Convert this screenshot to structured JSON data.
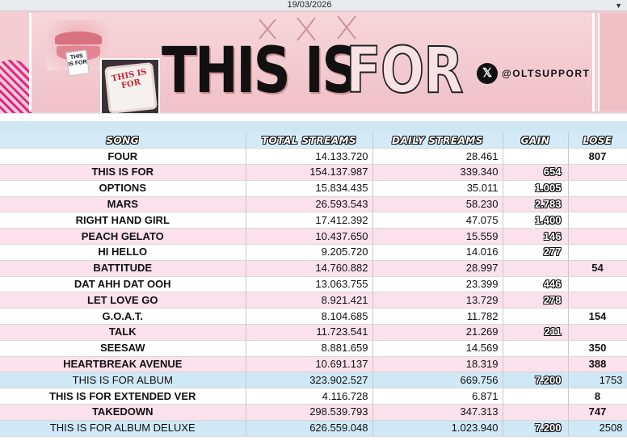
{
  "date_bar": {
    "date": "19/03/2026",
    "dropdown_icon": "chevron-down-icon"
  },
  "banner": {
    "title_solid": "THIS IS",
    "title_outline": "FOR",
    "card_text": "THIS IS FOR",
    "cake_text": "THIS IS FOR",
    "social_icon": "x-icon",
    "social_handle": "@OLTSUPPORT"
  },
  "table": {
    "headers": {
      "song": "SONG",
      "total": "TOTAL STREAMS",
      "daily": "DAILY STREAMS",
      "gain": "GAIN",
      "lose": "LOSE"
    },
    "rows": [
      {
        "song": "FOUR",
        "total": "14.133.720",
        "daily": "28.461",
        "gain": "",
        "lose": "807",
        "style": "white"
      },
      {
        "song": "THIS IS FOR",
        "total": "154.137.987",
        "daily": "339.340",
        "gain": "654",
        "lose": "",
        "style": "pink"
      },
      {
        "song": "OPTIONS",
        "total": "15.834.435",
        "daily": "35.011",
        "gain": "1.005",
        "lose": "",
        "style": "white"
      },
      {
        "song": "MARS",
        "total": "26.593.543",
        "daily": "58.230",
        "gain": "2.783",
        "lose": "",
        "style": "pink"
      },
      {
        "song": "RIGHT HAND GIRL",
        "total": "17.412.392",
        "daily": "47.075",
        "gain": "1.400",
        "lose": "",
        "style": "white"
      },
      {
        "song": "PEACH GELATO",
        "total": "10.437.650",
        "daily": "15.559",
        "gain": "146",
        "lose": "",
        "style": "pink"
      },
      {
        "song": "HI HELLO",
        "total": "9.205.720",
        "daily": "14.016",
        "gain": "277",
        "lose": "",
        "style": "white"
      },
      {
        "song": "BATTITUDE",
        "total": "14.760.882",
        "daily": "28.997",
        "gain": "",
        "lose": "54",
        "style": "pink"
      },
      {
        "song": "DAT AHH DAT OOH",
        "total": "13.063.755",
        "daily": "23.399",
        "gain": "446",
        "lose": "",
        "style": "white"
      },
      {
        "song": "LET LOVE GO",
        "total": "8.921.421",
        "daily": "13.729",
        "gain": "278",
        "lose": "",
        "style": "pink"
      },
      {
        "song": "G.O.A.T.",
        "total": "8.104.685",
        "daily": "11.782",
        "gain": "",
        "lose": "154",
        "style": "white"
      },
      {
        "song": "TALK",
        "total": "11.723.541",
        "daily": "21.269",
        "gain": "211",
        "lose": "",
        "style": "pink"
      },
      {
        "song": "SEESAW",
        "total": "8.881.659",
        "daily": "14.569",
        "gain": "",
        "lose": "350",
        "style": "white"
      },
      {
        "song": "HEARTBREAK AVENUE",
        "total": "10.691.137",
        "daily": "18.319",
        "gain": "",
        "lose": "388",
        "style": "pink"
      },
      {
        "song": "THIS IS FOR ALBUM",
        "total": "323.902.527",
        "daily": "669.756",
        "gain": "7.200",
        "lose": "1753",
        "style": "blue"
      },
      {
        "song": "THIS IS FOR EXTENDED VER",
        "total": "4.116.728",
        "daily": "6.871",
        "gain": "",
        "lose": "8",
        "style": "white"
      },
      {
        "song": "TAKEDOWN",
        "total": "298.539.793",
        "daily": "347.313",
        "gain": "",
        "lose": "747",
        "style": "pink"
      },
      {
        "song": "THIS IS FOR ALBUM DELUXE",
        "total": "626.559.048",
        "daily": "1.023.940",
        "gain": "7.200",
        "lose": "2508",
        "style": "blue"
      }
    ]
  },
  "colors": {
    "header_bg": "#d4ebf7",
    "pink_row": "#fbe1ec",
    "blue_row": "#cfe8f6",
    "banner_pink": "#f3cdd2"
  }
}
